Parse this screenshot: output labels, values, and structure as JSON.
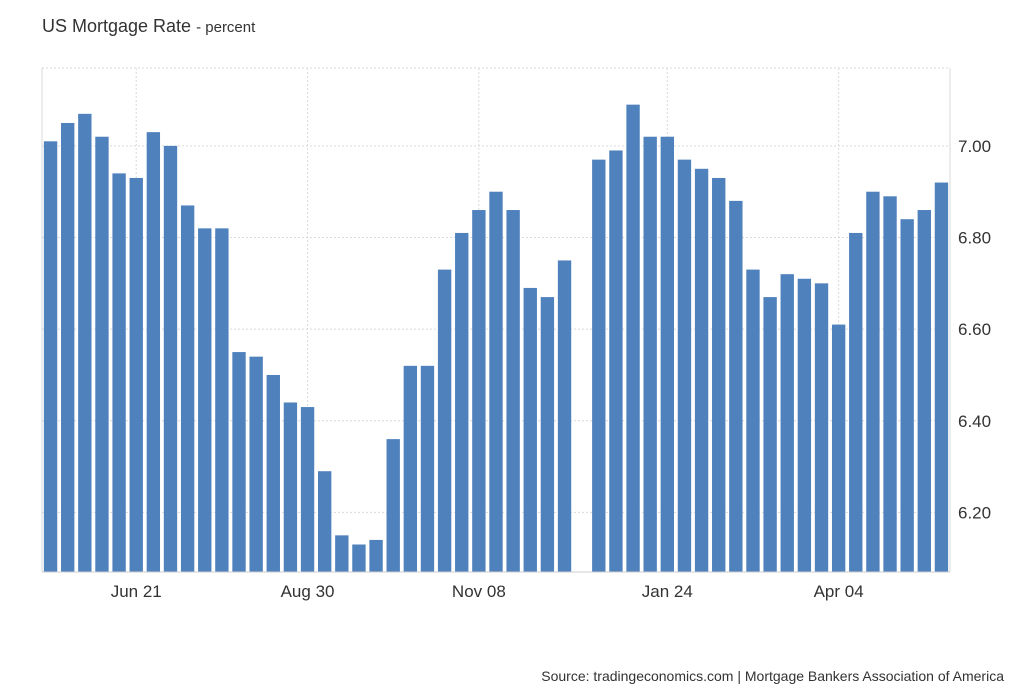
{
  "title": "US Mortgage Rate",
  "unit": "- percent",
  "source": "Source: tradingeconomics.com | Mortgage Bankers Association of America",
  "colors": {
    "bar": "#4f81bd",
    "grid": "#d9d9d9"
  },
  "chart_data": {
    "type": "bar",
    "title": "US Mortgage Rate",
    "ylabel": "percent",
    "ylim": [
      6.07,
      7.17
    ],
    "yticks": [
      6.2,
      6.4,
      6.6,
      6.8,
      7.0
    ],
    "ytick_labels": [
      "6.20",
      "6.40",
      "6.60",
      "6.80",
      "7.00"
    ],
    "xtick_labels": [
      "Jun 21",
      "Aug 30",
      "Nov 08",
      "Jan 24",
      "Apr 04"
    ],
    "xtick_index": [
      5,
      15,
      25,
      36,
      46
    ],
    "grid": true,
    "values": [
      7.01,
      7.05,
      7.07,
      7.02,
      6.94,
      6.93,
      7.03,
      7.0,
      6.87,
      6.82,
      6.82,
      6.55,
      6.54,
      6.5,
      6.44,
      6.43,
      6.29,
      6.15,
      6.13,
      6.14,
      6.36,
      6.52,
      6.52,
      6.73,
      6.81,
      6.86,
      6.9,
      6.86,
      6.69,
      6.67,
      6.75,
      null,
      6.97,
      6.99,
      7.09,
      7.02,
      7.02,
      6.97,
      6.95,
      6.93,
      6.88,
      6.73,
      6.67,
      6.72,
      6.71,
      6.7,
      6.61,
      6.81,
      6.9,
      6.89,
      6.84,
      6.86,
      6.92
    ]
  }
}
